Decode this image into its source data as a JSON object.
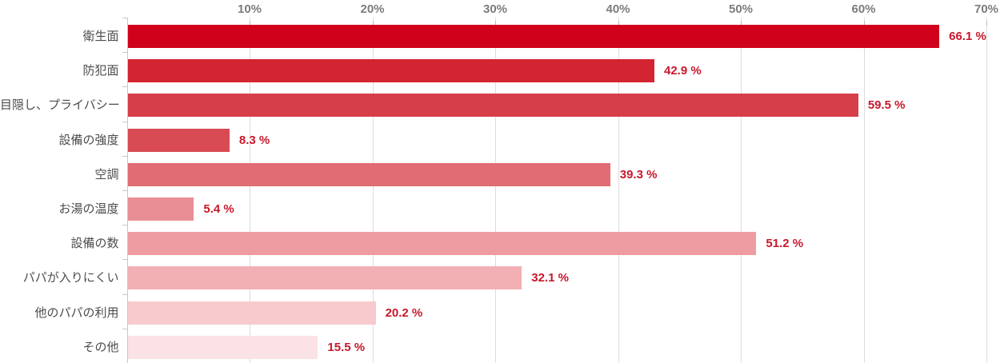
{
  "chart_data": {
    "type": "bar",
    "orientation": "horizontal",
    "title": "",
    "xlabel": "",
    "ylabel": "",
    "xlim": [
      0,
      70
    ],
    "grid": true,
    "legend": false,
    "x_tick_values": [
      10,
      20,
      30,
      40,
      50,
      60,
      70
    ],
    "x_tick_labels": [
      "10%",
      "20%",
      "30%",
      "40%",
      "50%",
      "60%",
      "70%"
    ],
    "categories": [
      "衛生面",
      "防犯面",
      "目隠し、プライバシー",
      "設備の強度",
      "空調",
      "お湯の温度",
      "設備の数",
      "パパが入りにくい",
      "他のパパの利用",
      "その他"
    ],
    "values": [
      66.1,
      42.9,
      59.5,
      8.3,
      39.3,
      5.4,
      51.2,
      32.1,
      20.2,
      15.5
    ],
    "value_labels": [
      "66.1 %",
      "42.9 %",
      "59.5 %",
      "8.3 %",
      "39.3 %",
      "5.4 %",
      "51.2 %",
      "32.1 %",
      "20.2 %",
      "15.5 %"
    ],
    "bar_colors": [
      "#d0021b",
      "#d32531",
      "#d63e49",
      "#d94b54",
      "#e16c73",
      "#ea8e95",
      "#ee9ba1",
      "#f2afb4",
      "#f7cbce",
      "#fbe2e4"
    ]
  },
  "colors": {
    "gridline": "#dcdcdc",
    "axis": "#c4c8cb",
    "x_tick_label": "#7c7c7c",
    "category_label": "#4c4c4c",
    "value_label": "#c8182b"
  }
}
